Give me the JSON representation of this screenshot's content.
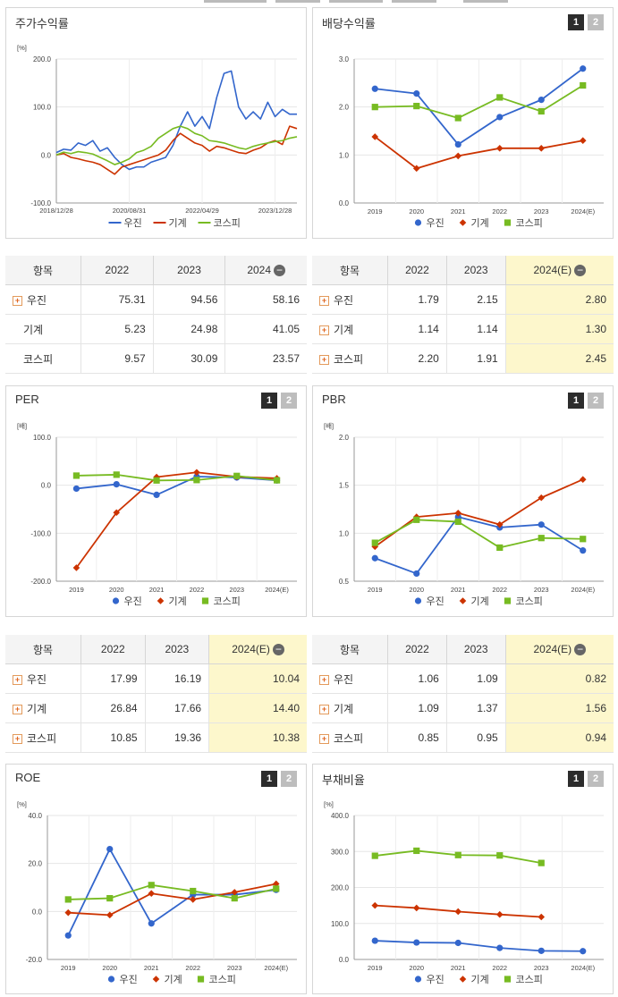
{
  "colors": {
    "ujin": "#3366cc",
    "machine": "#cc3300",
    "kospi": "#77bb22"
  },
  "tabs": [
    "1",
    "2"
  ],
  "charts": {
    "price": {
      "title": "주가수익률",
      "unit": "[%]",
      "y_ticks": [
        "200.0",
        "100.0",
        "0.0",
        "-100.0"
      ],
      "x_ticks": [
        "2018/12/28",
        "2020/08/31",
        "2022/04/29",
        "2023/12/28"
      ],
      "legend": [
        "우진",
        "기계",
        "코스피"
      ]
    },
    "dividend": {
      "title": "배당수익률",
      "unit": "",
      "y_ticks": [
        "3.0",
        "2.0",
        "1.0",
        "0.0"
      ],
      "x_ticks": [
        "2019",
        "2020",
        "2021",
        "2022",
        "2023",
        "2024(E)"
      ],
      "legend": [
        "우진",
        "기계",
        "코스피"
      ]
    },
    "per": {
      "title": "PER",
      "unit": "[배]",
      "y_ticks": [
        "100.0",
        "0.0",
        "-100.0",
        "-200.0"
      ],
      "x_ticks": [
        "2019",
        "2020",
        "2021",
        "2022",
        "2023",
        "2024(E)"
      ],
      "legend": [
        "우진",
        "기계",
        "코스피"
      ]
    },
    "pbr": {
      "title": "PBR",
      "unit": "[배]",
      "y_ticks": [
        "2.0",
        "1.5",
        "1.0",
        "0.5"
      ],
      "x_ticks": [
        "2019",
        "2020",
        "2021",
        "2022",
        "2023",
        "2024(E)"
      ],
      "legend": [
        "우진",
        "기계",
        "코스피"
      ]
    },
    "roe": {
      "title": "ROE",
      "unit": "[%]",
      "y_ticks": [
        "40.0",
        "20.0",
        "0.0",
        "-20.0"
      ],
      "x_ticks": [
        "2019",
        "2020",
        "2021",
        "2022",
        "2023",
        "2024(E)"
      ],
      "legend": [
        "우진",
        "기계",
        "코스피"
      ]
    },
    "debt": {
      "title": "부채비율",
      "unit": "[%]",
      "y_ticks": [
        "400.0",
        "300.0",
        "200.0",
        "100.0",
        "0.0"
      ],
      "x_ticks": [
        "2019",
        "2020",
        "2021",
        "2022",
        "2023",
        "2024(E)"
      ],
      "legend": [
        "우진",
        "기계",
        "코스피"
      ]
    }
  },
  "tables": {
    "price": {
      "header": [
        "항목",
        "2022",
        "2023",
        "2024"
      ],
      "rows": [
        {
          "label": "우진",
          "plus": true,
          "values": [
            "75.31",
            "94.56",
            "58.16"
          ]
        },
        {
          "label": "기계",
          "plus": false,
          "values": [
            "5.23",
            "24.98",
            "41.05"
          ]
        },
        {
          "label": "코스피",
          "plus": false,
          "values": [
            "9.57",
            "30.09",
            "23.57"
          ]
        }
      ]
    },
    "dividend": {
      "header": [
        "항목",
        "2022",
        "2023",
        "2024(E)"
      ],
      "rows": [
        {
          "label": "우진",
          "plus": true,
          "values": [
            "1.79",
            "2.15",
            "2.80"
          ]
        },
        {
          "label": "기계",
          "plus": true,
          "values": [
            "1.14",
            "1.14",
            "1.30"
          ]
        },
        {
          "label": "코스피",
          "plus": true,
          "values": [
            "2.20",
            "1.91",
            "2.45"
          ]
        }
      ]
    },
    "per": {
      "header": [
        "항목",
        "2022",
        "2023",
        "2024(E)"
      ],
      "rows": [
        {
          "label": "우진",
          "plus": true,
          "values": [
            "17.99",
            "16.19",
            "10.04"
          ]
        },
        {
          "label": "기계",
          "plus": true,
          "values": [
            "26.84",
            "17.66",
            "14.40"
          ]
        },
        {
          "label": "코스피",
          "plus": true,
          "values": [
            "10.85",
            "19.36",
            "10.38"
          ]
        }
      ]
    },
    "pbr": {
      "header": [
        "항목",
        "2022",
        "2023",
        "2024(E)"
      ],
      "rows": [
        {
          "label": "우진",
          "plus": true,
          "values": [
            "1.06",
            "1.09",
            "0.82"
          ]
        },
        {
          "label": "기계",
          "plus": true,
          "values": [
            "1.09",
            "1.37",
            "1.56"
          ]
        },
        {
          "label": "코스피",
          "plus": true,
          "values": [
            "0.85",
            "0.95",
            "0.94"
          ]
        }
      ]
    }
  },
  "chart_data": [
    {
      "id": "price",
      "type": "line",
      "title": "주가수익률",
      "ylabel": "[%]",
      "ylim": [
        -100,
        200
      ],
      "x_range": [
        "2018/12/28",
        "2024/06"
      ],
      "series": [
        {
          "name": "우진",
          "x": [
            0,
            2,
            4,
            6,
            8,
            10,
            12,
            14,
            16,
            18,
            20,
            22,
            24,
            26,
            28,
            30,
            32,
            34,
            36,
            38,
            40,
            42,
            44,
            46,
            48,
            50,
            52,
            54,
            56,
            58,
            60,
            62,
            64,
            66
          ],
          "values": [
            5,
            12,
            10,
            25,
            20,
            30,
            8,
            15,
            -5,
            -20,
            -30,
            -25,
            -25,
            -15,
            -10,
            -5,
            20,
            60,
            90,
            60,
            80,
            55,
            120,
            170,
            175,
            100,
            75,
            90,
            75,
            110,
            80,
            95,
            85,
            85
          ]
        },
        {
          "name": "기계",
          "x": [
            0,
            2,
            4,
            6,
            8,
            10,
            12,
            14,
            16,
            18,
            20,
            22,
            24,
            26,
            28,
            30,
            32,
            34,
            36,
            38,
            40,
            42,
            44,
            46,
            48,
            50,
            52,
            54,
            56,
            58,
            60,
            62,
            64,
            66
          ],
          "values": [
            0,
            3,
            -5,
            -8,
            -12,
            -15,
            -20,
            -30,
            -40,
            -25,
            -20,
            -15,
            -10,
            -5,
            0,
            10,
            30,
            45,
            35,
            25,
            20,
            8,
            18,
            15,
            10,
            5,
            3,
            10,
            15,
            25,
            30,
            22,
            60,
            55
          ]
        },
        {
          "name": "코스피",
          "x": [
            0,
            2,
            4,
            6,
            8,
            10,
            12,
            14,
            16,
            18,
            20,
            22,
            24,
            26,
            28,
            30,
            32,
            34,
            36,
            38,
            40,
            42,
            44,
            46,
            48,
            50,
            52,
            54,
            56,
            58,
            60,
            62,
            64,
            66
          ],
          "values": [
            0,
            6,
            3,
            7,
            5,
            2,
            -5,
            -12,
            -20,
            -15,
            -8,
            5,
            10,
            18,
            35,
            45,
            55,
            60,
            55,
            45,
            40,
            30,
            28,
            25,
            20,
            15,
            12,
            18,
            22,
            25,
            28,
            30,
            35,
            38
          ]
        }
      ]
    },
    {
      "id": "dividend",
      "type": "line",
      "title": "배당수익률",
      "ylim": [
        0,
        3
      ],
      "categories": [
        "2019",
        "2020",
        "2021",
        "2022",
        "2023",
        "2024(E)"
      ],
      "series": [
        {
          "name": "우진",
          "values": [
            2.38,
            2.28,
            1.22,
            1.79,
            2.15,
            2.8
          ]
        },
        {
          "name": "기계",
          "values": [
            1.38,
            0.72,
            0.98,
            1.14,
            1.14,
            1.3
          ]
        },
        {
          "name": "코스피",
          "values": [
            2.0,
            2.02,
            1.77,
            2.2,
            1.91,
            2.45
          ]
        }
      ]
    },
    {
      "id": "per",
      "type": "line",
      "title": "PER",
      "ylabel": "[배]",
      "ylim": [
        -200,
        100
      ],
      "categories": [
        "2019",
        "2020",
        "2021",
        "2022",
        "2023",
        "2024(E)"
      ],
      "series": [
        {
          "name": "우진",
          "values": [
            -7,
            2,
            -20,
            17.99,
            16.19,
            10.04
          ]
        },
        {
          "name": "기계",
          "values": [
            -172,
            -57,
            17,
            26.84,
            17.66,
            14.4
          ]
        },
        {
          "name": "코스피",
          "values": [
            20,
            22,
            10,
            10.85,
            19.36,
            10.38
          ]
        }
      ]
    },
    {
      "id": "pbr",
      "type": "line",
      "title": "PBR",
      "ylabel": "[배]",
      "ylim": [
        0.5,
        2.0
      ],
      "categories": [
        "2019",
        "2020",
        "2021",
        "2022",
        "2023",
        "2024(E)"
      ],
      "series": [
        {
          "name": "우진",
          "values": [
            0.74,
            0.58,
            1.17,
            1.06,
            1.09,
            0.82
          ]
        },
        {
          "name": "기계",
          "values": [
            0.86,
            1.17,
            1.21,
            1.09,
            1.37,
            1.56
          ]
        },
        {
          "name": "코스피",
          "values": [
            0.9,
            1.14,
            1.12,
            0.85,
            0.95,
            0.94
          ]
        }
      ]
    },
    {
      "id": "roe",
      "type": "line",
      "title": "ROE",
      "ylabel": "[%]",
      "ylim": [
        -20,
        40
      ],
      "categories": [
        "2019",
        "2020",
        "2021",
        "2022",
        "2023",
        "2024(E)"
      ],
      "series": [
        {
          "name": "우진",
          "values": [
            -10,
            26,
            -5,
            7,
            7,
            9
          ]
        },
        {
          "name": "기계",
          "values": [
            -0.5,
            -1.5,
            7.5,
            5,
            8,
            11.5
          ]
        },
        {
          "name": "코스피",
          "values": [
            5,
            5.5,
            11,
            8.5,
            5.5,
            9.5
          ]
        }
      ]
    },
    {
      "id": "debt",
      "type": "line",
      "title": "부채비율",
      "ylabel": "[%]",
      "ylim": [
        0,
        400
      ],
      "categories": [
        "2019",
        "2020",
        "2021",
        "2022",
        "2023",
        "2024(E)"
      ],
      "series": [
        {
          "name": "우진",
          "values": [
            52,
            47,
            46,
            32,
            24,
            23
          ]
        },
        {
          "name": "기계",
          "values": [
            150,
            143,
            133,
            125,
            118,
            null
          ]
        },
        {
          "name": "코스피",
          "values": [
            288,
            302,
            290,
            289,
            268,
            null
          ]
        }
      ]
    }
  ]
}
